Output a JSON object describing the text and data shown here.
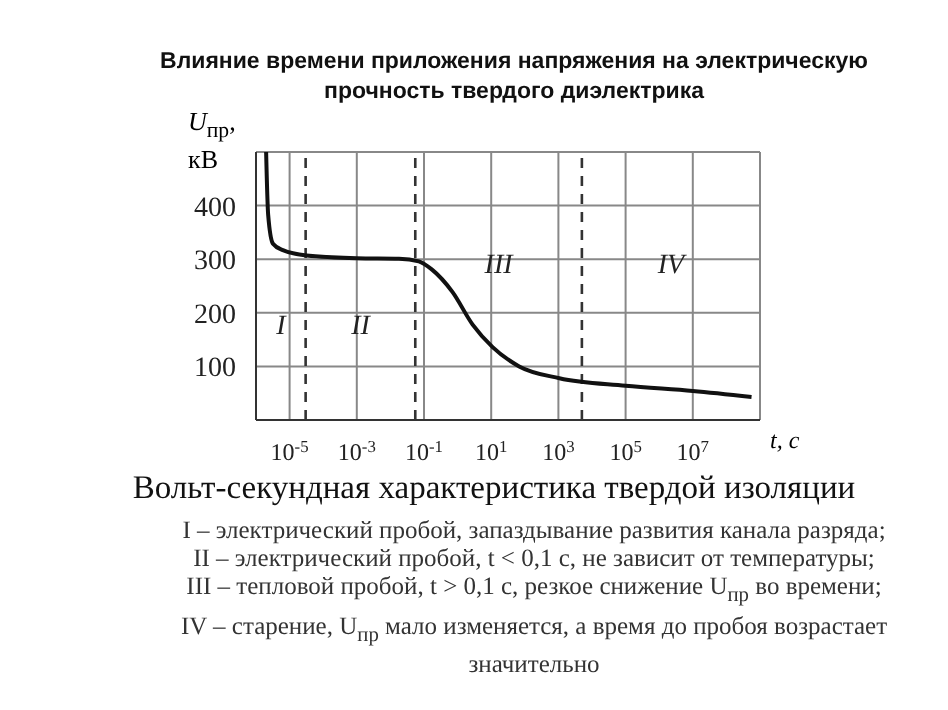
{
  "chart_data": {
    "type": "line",
    "title": "Влияние времени приложения напряжения на электрическую прочность твердого диэлектрика",
    "subtitle": "Вольт-секундная характеристика твердой изоляции",
    "xlabel": "t, с",
    "ylabel": "U$_{пр}$, кВ",
    "log": "x",
    "grid": true,
    "marker": "none",
    "line_style": "solid",
    "xlim": [
      1e-06,
      1000000000.0
    ],
    "xticks": [
      {
        "value": 1e-05,
        "label": "10$^{-5}$"
      },
      {
        "value": 0.001,
        "label": "10$^{-3}$"
      },
      {
        "value": 0.1,
        "label": "10$^{-1}$"
      },
      {
        "value": 10,
        "label": "10$^{1}$"
      },
      {
        "value": 1000,
        "label": "10$^{3}$"
      },
      {
        "value": 100000,
        "label": "10$^{5}$"
      },
      {
        "value": 10000000,
        "label": "10$^{7}$"
      }
    ],
    "ylim": [
      0,
      500
    ],
    "yticks": [
      100,
      200,
      300,
      400
    ],
    "series": [
      {
        "color": "#111111",
        "x": [
          2e-06,
          2.3e-06,
          3.2e-06,
          6.3e-06,
          3.2e-05,
          0.001,
          0.018,
          0.07,
          0.17,
          0.7,
          2.8,
          11,
          68,
          1070,
          100000,
          10000000,
          560000000
        ],
        "values": [
          500,
          383,
          329,
          317,
          307,
          302,
          301,
          296,
          281,
          239,
          178,
          136,
          100,
          78,
          64,
          54,
          43
        ]
      }
    ],
    "ref_lines": [
      {
        "axis": "x",
        "value": 3e-05,
        "color": "#333333",
        "line_style": "dashed"
      },
      {
        "axis": "x",
        "value": 0.055,
        "color": "#333333",
        "line_style": "dashed"
      },
      {
        "axis": "x",
        "value": 5000,
        "color": "#333333",
        "line_style": "dashed"
      }
    ],
    "annotations": [
      "I",
      "II",
      "III",
      "IV",
      "I – электрический пробой, запаздывание развития канала разряда;",
      "II – электрический пробой, t < 0,1 с, не зависит от температуры;",
      "III – тепловой пробой, t > 0,1 с, резкое снижение U$_{пр}$ во времени;",
      "IV – старение, U$_{пр}$ мало изменяется, а время до пробоя возрастает значительно"
    ]
  }
}
